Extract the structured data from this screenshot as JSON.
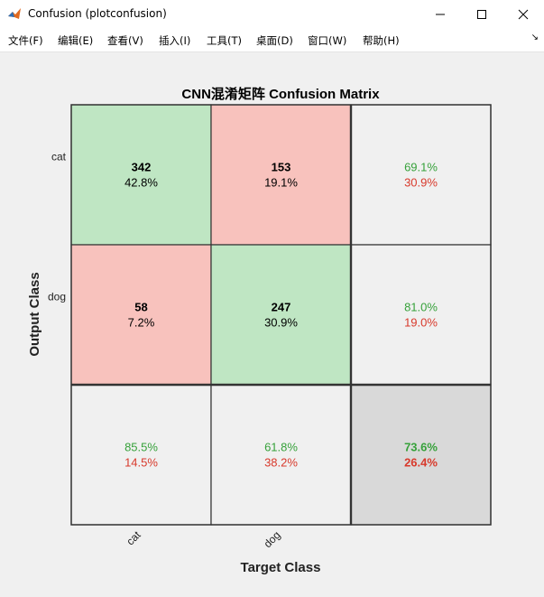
{
  "window": {
    "title": "Confusion (plotconfusion)"
  },
  "menu": [
    "文件(F)",
    "编辑(E)",
    "查看(V)",
    "插入(I)",
    "工具(T)",
    "桌面(D)",
    "窗口(W)",
    "帮助(H)"
  ],
  "colors": {
    "correct": "#bfe6c3",
    "incorrect": "#f8c2bd",
    "summary": "#f0f0f0",
    "overall": "#d9d9d9",
    "green_text": "#36a13a",
    "red_text": "#d8392b"
  },
  "chart_data": {
    "type": "heatmap",
    "title": "CNN混淆矩阵 Confusion Matrix",
    "xlabel": "Target Class",
    "ylabel": "Output Class",
    "classes": [
      "cat",
      "dog"
    ],
    "matrix": [
      [
        {
          "count": "342",
          "pct": "42.8%"
        },
        {
          "count": "153",
          "pct": "19.1%"
        }
      ],
      [
        {
          "count": "58",
          "pct": "7.2%"
        },
        {
          "count": "247",
          "pct": "30.9%"
        }
      ]
    ],
    "row_summary": [
      {
        "correct": "69.1%",
        "incorrect": "30.9%"
      },
      {
        "correct": "81.0%",
        "incorrect": "19.0%"
      }
    ],
    "col_summary": [
      {
        "correct": "85.5%",
        "incorrect": "14.5%"
      },
      {
        "correct": "61.8%",
        "incorrect": "38.2%"
      }
    ],
    "overall": {
      "correct": "73.6%",
      "incorrect": "26.4%"
    }
  }
}
